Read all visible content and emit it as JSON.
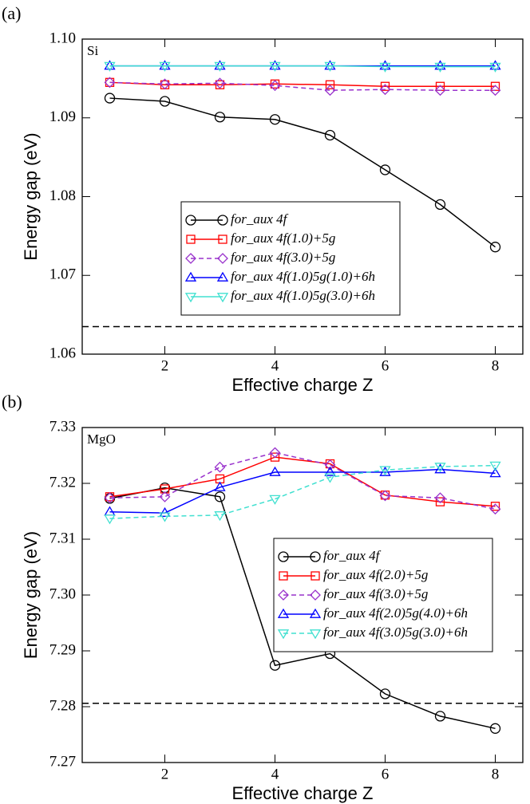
{
  "chart_data": [
    {
      "type": "line",
      "panel_label": "(a)",
      "annotation": "Si",
      "xlabel": "Effective charge Z",
      "ylabel": "Energy gap (eV)",
      "x": [
        1,
        2,
        3,
        4,
        5,
        6,
        7,
        8
      ],
      "xlim": [
        0.5,
        8.5
      ],
      "xticks": [
        2,
        4,
        6,
        8
      ],
      "ylim": [
        1.06,
        1.1
      ],
      "yticks": [
        1.06,
        1.07,
        1.08,
        1.09,
        {
          "value": 1.1,
          "label": "1.10"
        }
      ],
      "reference_line": 1.0635,
      "legend": "lower center",
      "series": [
        {
          "name": "for_aux 4f",
          "color": "#000000",
          "marker": "circle",
          "dashed": false,
          "values": [
            1.0925,
            1.0921,
            1.0901,
            1.0898,
            1.0878,
            1.0834,
            1.079,
            1.0736
          ]
        },
        {
          "name": "for_aux 4f(1.0)+5g",
          "color": "#ff0000",
          "marker": "square",
          "dashed": false,
          "values": [
            1.0945,
            1.0942,
            1.0942,
            1.0943,
            1.0942,
            1.094,
            1.094,
            1.094
          ]
        },
        {
          "name": "for_aux 4f(3.0)+5g",
          "color": "#9932cc",
          "marker": "diamond",
          "dashed": true,
          "values": [
            1.0945,
            1.0943,
            1.0944,
            1.0941,
            1.0935,
            1.0936,
            1.0935,
            1.0935
          ]
        },
        {
          "name": "for_aux 4f(1.0)5g(1.0)+6h",
          "color": "#0000ff",
          "marker": "triangle-up",
          "dashed": false,
          "values": [
            1.0966,
            1.0966,
            1.0966,
            1.0966,
            1.0966,
            1.0966,
            1.0966,
            1.0966
          ]
        },
        {
          "name": "for_aux 4f(1.0)5g(3.0)+6h",
          "color": "#40e0d0",
          "marker": "triangle-down",
          "dashed": false,
          "values": [
            1.0966,
            1.0966,
            1.0966,
            1.0966,
            1.0966,
            1.0965,
            1.0965,
            1.0965
          ]
        }
      ]
    },
    {
      "type": "line",
      "panel_label": "(b)",
      "annotation": "MgO",
      "xlabel": "Effective charge Z",
      "ylabel": "Energy gap (eV)",
      "x": [
        1,
        2,
        3,
        4,
        5,
        6,
        7,
        8
      ],
      "xlim": [
        0.5,
        8.5
      ],
      "xticks": [
        2,
        4,
        6,
        8
      ],
      "ylim": [
        7.27,
        7.33
      ],
      "yticks": [
        7.27,
        7.28,
        7.29,
        {
          "value": 7.3,
          "label": "7.30"
        },
        7.31,
        7.32,
        7.33
      ],
      "reference_line": 7.2806,
      "legend": "center right",
      "series": [
        {
          "name": "for_aux 4f",
          "color": "#000000",
          "marker": "circle",
          "dashed": false,
          "values": [
            7.3173,
            7.3192,
            7.3176,
            7.2874,
            7.2895,
            7.2823,
            7.2783,
            7.2761
          ]
        },
        {
          "name": "for_aux 4f(2.0)+5g",
          "color": "#ff0000",
          "marker": "square",
          "dashed": false,
          "values": [
            7.3176,
            7.319,
            7.3208,
            7.3247,
            7.3235,
            7.3179,
            7.3167,
            7.3159
          ]
        },
        {
          "name": "for_aux 4f(3.0)+5g",
          "color": "#9932cc",
          "marker": "diamond",
          "dashed": true,
          "values": [
            7.3174,
            7.3176,
            7.3229,
            7.3255,
            7.3233,
            7.3178,
            7.3174,
            7.3154
          ]
        },
        {
          "name": "for_aux 4f(2.0)5g(4.0)+6h",
          "color": "#0000ff",
          "marker": "triangle-up",
          "dashed": false,
          "values": [
            7.3149,
            7.3147,
            7.3193,
            7.322,
            7.322,
            7.322,
            7.3225,
            7.3218
          ]
        },
        {
          "name": "for_aux 4f(3.0)5g(3.0)+6h",
          "color": "#40e0d0",
          "marker": "triangle-down",
          "dashed": true,
          "values": [
            7.3137,
            7.3141,
            7.3143,
            7.3172,
            7.3211,
            7.3224,
            7.323,
            7.3232
          ]
        }
      ]
    }
  ]
}
